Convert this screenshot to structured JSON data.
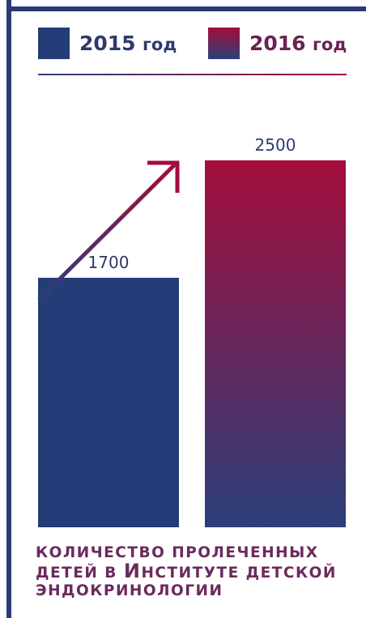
{
  "legend": {
    "items": [
      {
        "year": "2015",
        "unit": "год",
        "color": "#243c77"
      },
      {
        "year": "2016",
        "unit": "год",
        "color_top": "#a30d3b",
        "color_bottom": "#2a3f7a"
      }
    ]
  },
  "chart_data": {
    "type": "bar",
    "categories": [
      "2015 год",
      "2016 год"
    ],
    "values": [
      1700,
      2500
    ],
    "data_labels": [
      "1700",
      "2500"
    ],
    "title": "",
    "xlabel": "",
    "ylabel": "",
    "ylim": [
      0,
      2500
    ],
    "grid": false,
    "legend_position": "top",
    "colors": {
      "bar_2015": "#243c77",
      "bar_2016_top": "#a30d3b",
      "bar_2016_bottom": "#2a3f7a"
    },
    "annotation": "upward-arrow"
  },
  "caption": {
    "line1": "КОЛИЧЕСТВО ПРОЛЕЧЕННЫХ",
    "line2_prefix": "ДЕТЕЙ В ",
    "line2_big": "И",
    "line2_rest": "НСТИТУТЕ ДЕТСКОЙ",
    "line3": "ЭНДОКРИНОЛОГИИ"
  }
}
